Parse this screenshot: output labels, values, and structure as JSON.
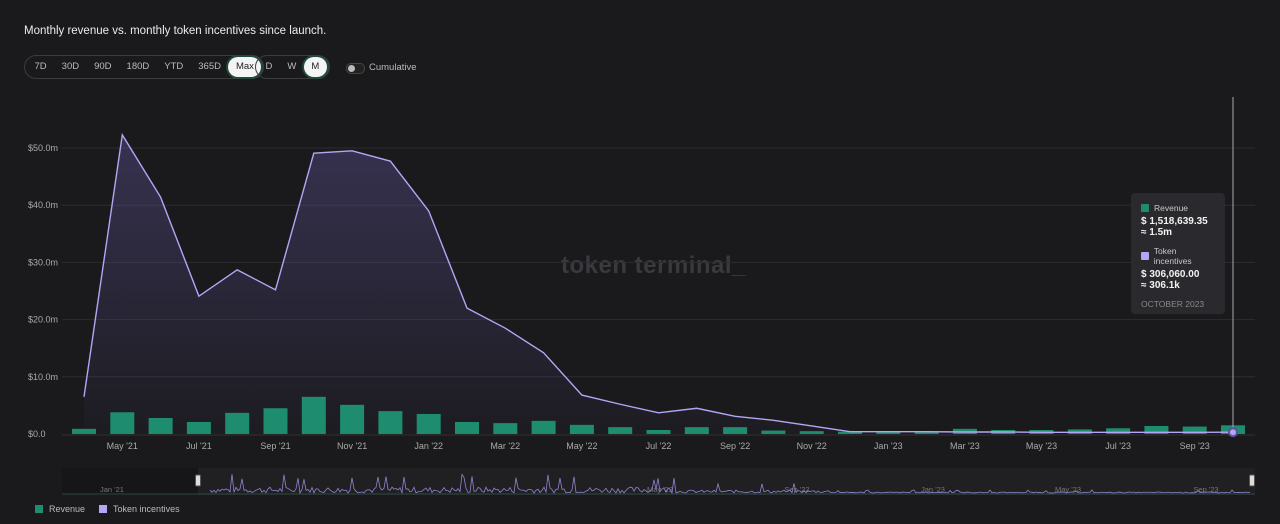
{
  "header": {
    "title": "Monthly revenue vs. monthly token incentives since launch."
  },
  "range_buttons": [
    {
      "label": "7D"
    },
    {
      "label": "30D"
    },
    {
      "label": "90D"
    },
    {
      "label": "180D"
    },
    {
      "label": "YTD"
    },
    {
      "label": "365D"
    },
    {
      "label": "Max",
      "active": true
    }
  ],
  "granularity_buttons": [
    {
      "label": "D"
    },
    {
      "label": "W"
    },
    {
      "label": "M",
      "active": true
    }
  ],
  "cumulative": {
    "label": "Cumulative",
    "on": false
  },
  "watermark": "token terminal_",
  "tooltip": {
    "revenue_label": "Revenue",
    "revenue_value": "$ 1,518,639.35",
    "revenue_approx": "≈ 1.5m",
    "incentives_label": "Token incentives",
    "incentives_value": "$ 306,060.00",
    "incentives_approx": "≈ 306.1k",
    "date": "OCTOBER 2023"
  },
  "navigator": {
    "labels": [
      "Jan '21",
      "May '22",
      "Sep '22",
      "Jan '23",
      "May '23",
      "Sep '23"
    ]
  },
  "legend": [
    {
      "label": "Revenue",
      "color": "#1e8c6e"
    },
    {
      "label": "Token incentives",
      "color": "#b3a6f5"
    }
  ],
  "chart_data": {
    "type": "bar+line",
    "categories": [
      "Apr '21",
      "May '21",
      "Jun '21",
      "Jul '21",
      "Aug '21",
      "Sep '21",
      "Oct '21",
      "Nov '21",
      "Dec '21",
      "Jan '22",
      "Feb '22",
      "Mar '22",
      "Apr '22",
      "May '22",
      "Jun '22",
      "Jul '22",
      "Aug '22",
      "Sep '22",
      "Oct '22",
      "Nov '22",
      "Dec '22",
      "Jan '23",
      "Feb '23",
      "Mar '23",
      "Apr '23",
      "May '23",
      "Jun '23",
      "Jul '23",
      "Aug '23",
      "Sep '23",
      "Oct '23"
    ],
    "x_tick_labels": [
      "May '21",
      "Jul '21",
      "Sep '21",
      "Nov '21",
      "Jan '22",
      "Mar '22",
      "May '22",
      "Jul '22",
      "Sep '22",
      "Nov '22",
      "Jan '23",
      "Mar '23",
      "May '23",
      "Jul '23",
      "Sep '23"
    ],
    "y_tick_labels": [
      "$0.0",
      "$10.0m",
      "$20.0m",
      "$30.0m",
      "$40.0m",
      "$50.0m"
    ],
    "ylim": [
      0,
      55
    ],
    "unit": "USD millions",
    "grid": true,
    "legend_position": "bottom-left",
    "series": [
      {
        "name": "Revenue",
        "type": "bar",
        "color": "#1e8c6e",
        "values": [
          0.9,
          3.8,
          2.8,
          2.1,
          3.7,
          4.5,
          6.5,
          5.1,
          4.0,
          3.5,
          2.1,
          1.9,
          2.3,
          1.6,
          1.2,
          0.7,
          1.2,
          1.2,
          0.6,
          0.5,
          0.4,
          0.5,
          0.4,
          0.9,
          0.7,
          0.7,
          0.8,
          1.0,
          1.4,
          1.3,
          1.52
        ]
      },
      {
        "name": "Token incentives",
        "type": "area-line",
        "color": "#b3a6f5",
        "values": [
          6.5,
          52.3,
          41.4,
          24.1,
          28.7,
          25.2,
          49.1,
          49.5,
          47.7,
          39.0,
          22.0,
          18.5,
          14.2,
          6.8,
          5.2,
          3.7,
          4.5,
          3.1,
          2.4,
          1.4,
          0.4,
          0.4,
          0.4,
          0.35,
          0.35,
          0.3,
          0.3,
          0.3,
          0.3,
          0.3,
          0.31
        ]
      }
    ]
  }
}
